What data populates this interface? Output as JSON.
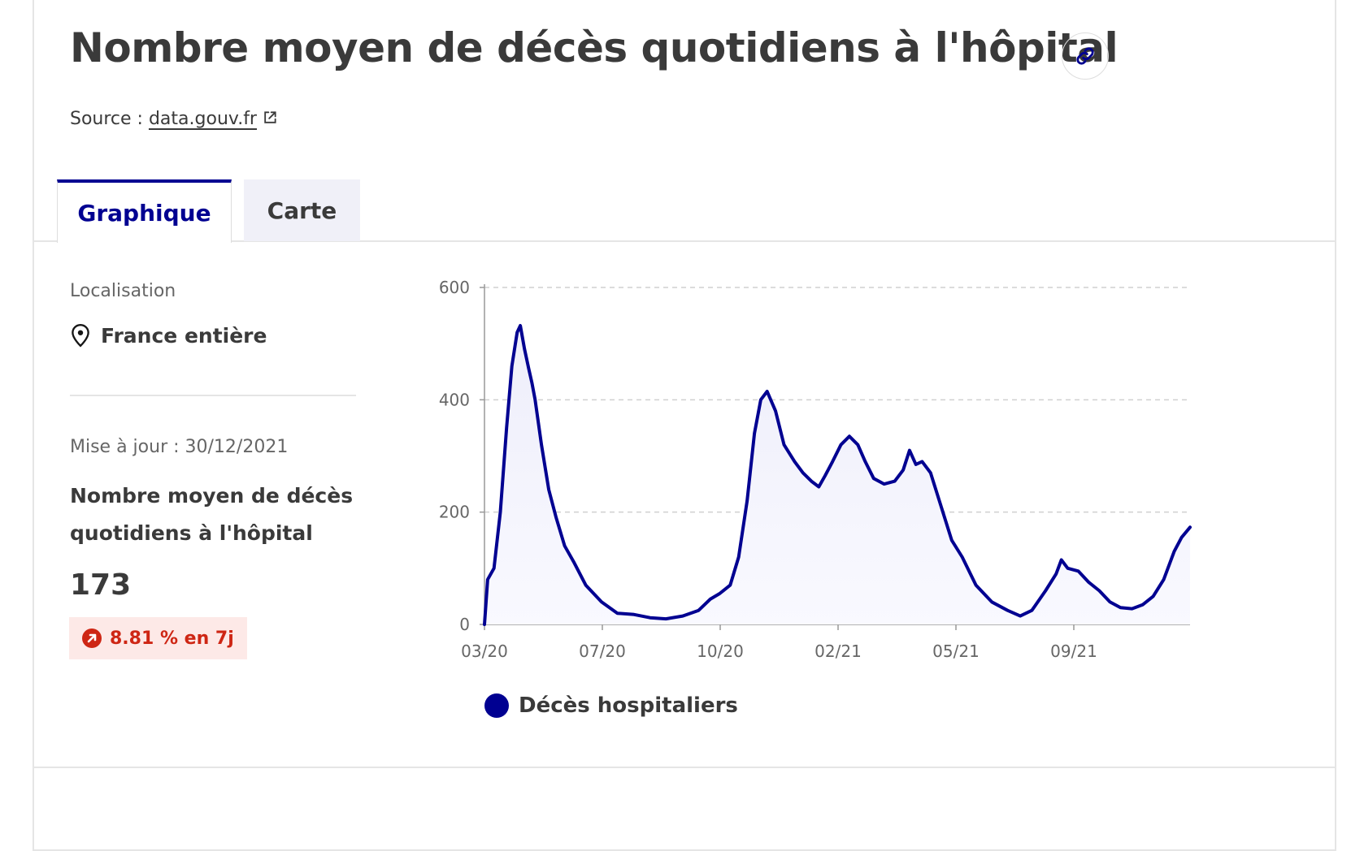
{
  "header": {
    "title": "Nombre moyen de décès quotidiens à l'hôpital",
    "source_label": "Source :",
    "source_link": "data.gouv.fr"
  },
  "tabs": [
    {
      "label": "Graphique",
      "active": true
    },
    {
      "label": "Carte",
      "active": false
    }
  ],
  "sidebar": {
    "location_label": "Localisation",
    "location_value": "France entière",
    "updated": "Mise à jour : 30/12/2021",
    "metric_title": "Nombre moyen de décès quotidiens à l'hôpital",
    "metric_value": "173",
    "trend": "8.81 % en 7j"
  },
  "colors": {
    "accent": "#000091",
    "trend_red": "#ce2614",
    "trend_bg": "#fde9e7"
  },
  "chart_data": {
    "type": "area",
    "x_ticks": [
      "03/20",
      "07/20",
      "10/20",
      "02/21",
      "05/21",
      "09/21"
    ],
    "ylim": [
      0,
      600
    ],
    "y_ticks": [
      0,
      200,
      400,
      600
    ],
    "grid": "horizontal dashed",
    "legend_position": "bottom",
    "series": [
      {
        "name": "Décès hospitaliers",
        "color": "#000091",
        "points": [
          [
            "2020-03-01",
            0
          ],
          [
            "2020-03-04",
            80
          ],
          [
            "2020-03-10",
            100
          ],
          [
            "2020-03-16",
            200
          ],
          [
            "2020-03-22",
            350
          ],
          [
            "2020-03-27",
            460
          ],
          [
            "2020-04-01",
            520
          ],
          [
            "2020-04-04",
            532
          ],
          [
            "2020-04-08",
            490
          ],
          [
            "2020-04-12",
            455
          ],
          [
            "2020-04-15",
            430
          ],
          [
            "2020-04-18",
            400
          ],
          [
            "2020-04-24",
            320
          ],
          [
            "2020-05-01",
            240
          ],
          [
            "2020-05-08",
            190
          ],
          [
            "2020-05-16",
            140
          ],
          [
            "2020-05-25",
            110
          ],
          [
            "2020-06-05",
            70
          ],
          [
            "2020-06-20",
            40
          ],
          [
            "2020-07-05",
            20
          ],
          [
            "2020-07-20",
            18
          ],
          [
            "2020-08-05",
            12
          ],
          [
            "2020-08-20",
            10
          ],
          [
            "2020-09-05",
            15
          ],
          [
            "2020-09-20",
            25
          ],
          [
            "2020-10-01",
            45
          ],
          [
            "2020-10-10",
            55
          ],
          [
            "2020-10-20",
            70
          ],
          [
            "2020-10-28",
            120
          ],
          [
            "2020-11-05",
            220
          ],
          [
            "2020-11-12",
            340
          ],
          [
            "2020-11-18",
            400
          ],
          [
            "2020-11-24",
            415
          ],
          [
            "2020-12-02",
            380
          ],
          [
            "2020-12-10",
            320
          ],
          [
            "2020-12-20",
            290
          ],
          [
            "2020-12-28",
            270
          ],
          [
            "2021-01-05",
            255
          ],
          [
            "2021-01-12",
            245
          ],
          [
            "2021-01-18",
            265
          ],
          [
            "2021-01-25",
            290
          ],
          [
            "2021-02-02",
            320
          ],
          [
            "2021-02-10",
            335
          ],
          [
            "2021-02-18",
            320
          ],
          [
            "2021-02-25",
            290
          ],
          [
            "2021-03-05",
            260
          ],
          [
            "2021-03-15",
            250
          ],
          [
            "2021-03-25",
            255
          ],
          [
            "2021-04-02",
            275
          ],
          [
            "2021-04-08",
            310
          ],
          [
            "2021-04-14",
            285
          ],
          [
            "2021-04-20",
            290
          ],
          [
            "2021-04-28",
            270
          ],
          [
            "2021-05-08",
            210
          ],
          [
            "2021-05-18",
            150
          ],
          [
            "2021-05-28",
            120
          ],
          [
            "2021-06-10",
            70
          ],
          [
            "2021-06-25",
            40
          ],
          [
            "2021-07-10",
            25
          ],
          [
            "2021-07-22",
            15
          ],
          [
            "2021-08-02",
            25
          ],
          [
            "2021-08-15",
            60
          ],
          [
            "2021-08-25",
            90
          ],
          [
            "2021-08-30",
            115
          ],
          [
            "2021-09-05",
            100
          ],
          [
            "2021-09-15",
            95
          ],
          [
            "2021-09-25",
            75
          ],
          [
            "2021-10-05",
            60
          ],
          [
            "2021-10-15",
            40
          ],
          [
            "2021-10-25",
            30
          ],
          [
            "2021-11-05",
            28
          ],
          [
            "2021-11-15",
            35
          ],
          [
            "2021-11-25",
            50
          ],
          [
            "2021-12-05",
            80
          ],
          [
            "2021-12-15",
            130
          ],
          [
            "2021-12-22",
            155
          ],
          [
            "2021-12-30",
            173
          ]
        ]
      }
    ]
  }
}
